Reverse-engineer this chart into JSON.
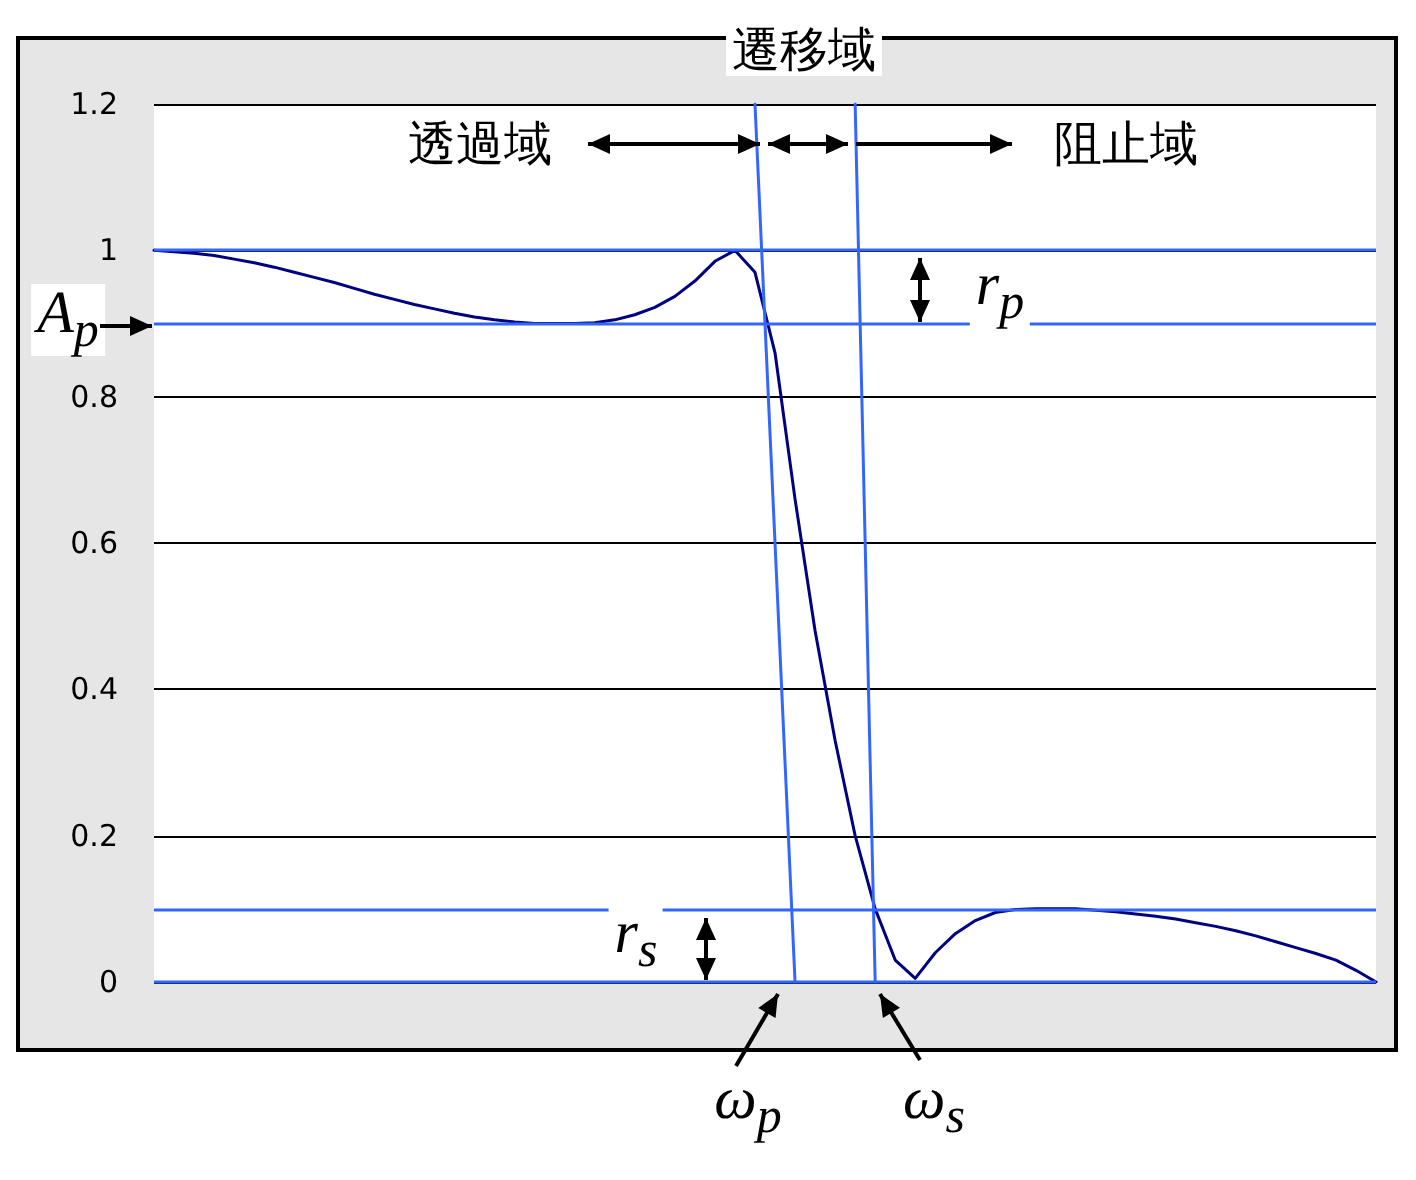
{
  "chart_data": {
    "type": "line",
    "categories": [
      null,
      null,
      null,
      null,
      null,
      null,
      null,
      null,
      null,
      null,
      null,
      null,
      null,
      null,
      null,
      null,
      null,
      null,
      null,
      null,
      null,
      null,
      null,
      null,
      null,
      null,
      null,
      null,
      null,
      null,
      null,
      null,
      null,
      null,
      null,
      null,
      null,
      null,
      null,
      null,
      null,
      null,
      null,
      null,
      null,
      null,
      null,
      null,
      null,
      null,
      null,
      null,
      null,
      null,
      null,
      null,
      null,
      null,
      null,
      null,
      null,
      null
    ],
    "series": [
      {
        "color": "#000080",
        "values": [
          1.0,
          0.998,
          0.996,
          0.993,
          0.988,
          0.983,
          0.977,
          0.97,
          0.963,
          0.956,
          0.948,
          0.94,
          0.933,
          0.926,
          0.92,
          0.914,
          0.909,
          0.905,
          0.902,
          0.9,
          0.9,
          0.9,
          0.901,
          0.905,
          0.912,
          0.922,
          0.937,
          0.958,
          0.985,
          1.0,
          0.97,
          0.86,
          0.66,
          0.48,
          0.33,
          0.2,
          0.1,
          0.03,
          0.005,
          0.04,
          0.066,
          0.084,
          0.095,
          0.099,
          0.1,
          0.1,
          0.1,
          0.098,
          0.096,
          0.093,
          0.09,
          0.086,
          0.081,
          0.076,
          0.07,
          0.063,
          0.055,
          0.047,
          0.039,
          0.03,
          0.016,
          0.0
        ]
      },
      {
        "color": "#3366ff",
        "values": [
          null,
          null,
          null,
          null,
          null,
          null,
          null,
          null,
          null,
          null,
          null,
          null,
          null,
          null,
          null,
          null,
          null,
          null,
          null,
          null,
          null,
          null,
          null,
          null,
          null,
          null,
          null,
          null,
          null,
          null,
          1.2,
          null,
          0,
          null,
          null,
          null,
          null,
          null,
          null,
          null,
          null,
          null,
          null,
          null,
          null,
          null,
          null,
          null,
          null,
          null,
          null,
          null,
          null,
          null,
          null,
          null,
          null,
          null,
          null,
          null,
          null,
          null
        ]
      },
      {
        "color": "#3366ff",
        "values": [
          null,
          null,
          null,
          null,
          null,
          null,
          null,
          null,
          null,
          null,
          null,
          null,
          null,
          null,
          null,
          null,
          null,
          null,
          null,
          null,
          null,
          null,
          null,
          null,
          null,
          null,
          null,
          null,
          null,
          null,
          null,
          null,
          null,
          null,
          null,
          1.2,
          0,
          null,
          null,
          null,
          null,
          null,
          null,
          null,
          null,
          null,
          null,
          null,
          null,
          null,
          null,
          null,
          null,
          null,
          null,
          null,
          null,
          null,
          null,
          null,
          null,
          null
        ]
      }
    ],
    "ylim": [
      0,
      1.2
    ],
    "yticks": [
      0,
      0.2,
      0.4,
      0.6,
      0.8,
      1,
      1.2
    ],
    "grid": "y",
    "tick_labels": "y",
    "marker": "none",
    "line_style": "solid",
    "ref_lines": [
      {
        "axis": "y",
        "value": 1,
        "color": "#3366ff"
      },
      {
        "axis": "y",
        "value": 0.9,
        "color": "#3366ff"
      },
      {
        "axis": "y",
        "value": 0.1,
        "color": "#3366ff"
      },
      {
        "axis": "y",
        "value": 0,
        "color": "#3366ff"
      }
    ],
    "annotations": [
      "遷移域",
      "透過域",
      "阻止域",
      "A$_{p}$",
      "r$_{p}$",
      "r$_{s}$",
      "ω$_{p}$",
      "ω$_{s}$"
    ]
  }
}
